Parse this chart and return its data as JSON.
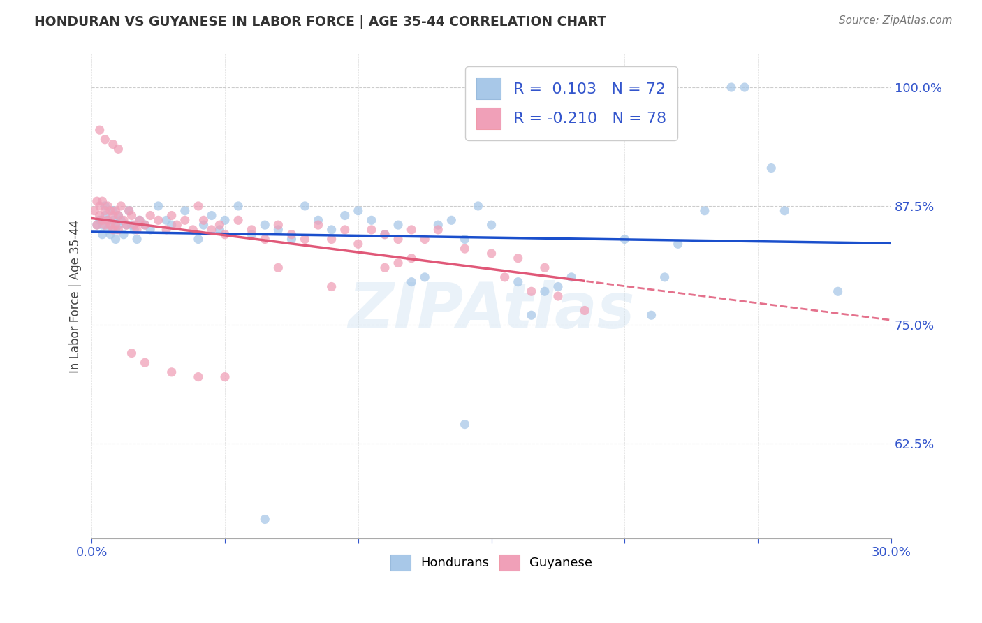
{
  "title": "HONDURAN VS GUYANESE IN LABOR FORCE | AGE 35-44 CORRELATION CHART",
  "source": "Source: ZipAtlas.com",
  "ylabel": "In Labor Force | Age 35-44",
  "yticks": [
    0.625,
    0.75,
    0.875,
    1.0
  ],
  "ytick_labels": [
    "62.5%",
    "75.0%",
    "87.5%",
    "100.0%"
  ],
  "xlim": [
    0.0,
    0.3
  ],
  "ylim": [
    0.525,
    1.035
  ],
  "watermark": "ZIPAtlas",
  "honduran_color": "#a8c8e8",
  "guyanese_color": "#f0a0b8",
  "trend_blue": "#1a4fcc",
  "trend_pink": "#e05878",
  "honduran_R": 0.103,
  "honduran_N": 72,
  "guyanese_R": -0.21,
  "guyanese_N": 78,
  "legend_blue_text": "R =  0.103   N = 72",
  "legend_pink_text": "R = -0.210   N = 78",
  "legend_blue_r": "0.103",
  "legend_pink_r": "-0.210",
  "legend_blue_n": "72",
  "legend_pink_n": "78",
  "legend_color": "#4477cc",
  "honduran_points": [
    [
      0.002,
      0.855
    ],
    [
      0.003,
      0.86
    ],
    [
      0.004,
      0.845
    ],
    [
      0.004,
      0.855
    ],
    [
      0.005,
      0.865
    ],
    [
      0.005,
      0.875
    ],
    [
      0.006,
      0.85
    ],
    [
      0.006,
      0.86
    ],
    [
      0.007,
      0.845
    ],
    [
      0.007,
      0.855
    ],
    [
      0.008,
      0.87
    ],
    [
      0.008,
      0.86
    ],
    [
      0.009,
      0.85
    ],
    [
      0.009,
      0.84
    ],
    [
      0.01,
      0.855
    ],
    [
      0.01,
      0.865
    ],
    [
      0.011,
      0.86
    ],
    [
      0.012,
      0.845
    ],
    [
      0.013,
      0.855
    ],
    [
      0.014,
      0.87
    ],
    [
      0.015,
      0.855
    ],
    [
      0.016,
      0.85
    ],
    [
      0.017,
      0.84
    ],
    [
      0.018,
      0.86
    ],
    [
      0.02,
      0.855
    ],
    [
      0.022,
      0.85
    ],
    [
      0.025,
      0.875
    ],
    [
      0.028,
      0.86
    ],
    [
      0.03,
      0.855
    ],
    [
      0.035,
      0.87
    ],
    [
      0.04,
      0.84
    ],
    [
      0.042,
      0.855
    ],
    [
      0.045,
      0.865
    ],
    [
      0.048,
      0.85
    ],
    [
      0.05,
      0.86
    ],
    [
      0.055,
      0.875
    ],
    [
      0.06,
      0.845
    ],
    [
      0.065,
      0.855
    ],
    [
      0.07,
      0.85
    ],
    [
      0.075,
      0.84
    ],
    [
      0.08,
      0.875
    ],
    [
      0.085,
      0.86
    ],
    [
      0.09,
      0.85
    ],
    [
      0.095,
      0.865
    ],
    [
      0.1,
      0.87
    ],
    [
      0.105,
      0.86
    ],
    [
      0.11,
      0.845
    ],
    [
      0.115,
      0.855
    ],
    [
      0.12,
      0.795
    ],
    [
      0.125,
      0.8
    ],
    [
      0.13,
      0.855
    ],
    [
      0.135,
      0.86
    ],
    [
      0.14,
      0.84
    ],
    [
      0.145,
      0.875
    ],
    [
      0.15,
      0.855
    ],
    [
      0.16,
      0.795
    ],
    [
      0.165,
      0.76
    ],
    [
      0.17,
      0.785
    ],
    [
      0.175,
      0.79
    ],
    [
      0.18,
      0.8
    ],
    [
      0.2,
      0.84
    ],
    [
      0.21,
      0.76
    ],
    [
      0.215,
      0.8
    ],
    [
      0.22,
      0.835
    ],
    [
      0.23,
      0.87
    ],
    [
      0.24,
      1.0
    ],
    [
      0.245,
      1.0
    ],
    [
      0.255,
      0.915
    ],
    [
      0.26,
      0.87
    ],
    [
      0.065,
      0.545
    ],
    [
      0.14,
      0.645
    ],
    [
      0.28,
      0.785
    ]
  ],
  "guyanese_points": [
    [
      0.001,
      0.87
    ],
    [
      0.002,
      0.88
    ],
    [
      0.002,
      0.855
    ],
    [
      0.003,
      0.875
    ],
    [
      0.003,
      0.865
    ],
    [
      0.004,
      0.88
    ],
    [
      0.004,
      0.86
    ],
    [
      0.005,
      0.87
    ],
    [
      0.005,
      0.855
    ],
    [
      0.006,
      0.875
    ],
    [
      0.006,
      0.86
    ],
    [
      0.007,
      0.87
    ],
    [
      0.007,
      0.855
    ],
    [
      0.008,
      0.865
    ],
    [
      0.008,
      0.85
    ],
    [
      0.009,
      0.87
    ],
    [
      0.009,
      0.855
    ],
    [
      0.01,
      0.865
    ],
    [
      0.01,
      0.85
    ],
    [
      0.011,
      0.875
    ],
    [
      0.012,
      0.86
    ],
    [
      0.013,
      0.855
    ],
    [
      0.014,
      0.87
    ],
    [
      0.015,
      0.865
    ],
    [
      0.016,
      0.855
    ],
    [
      0.017,
      0.85
    ],
    [
      0.018,
      0.86
    ],
    [
      0.02,
      0.855
    ],
    [
      0.022,
      0.865
    ],
    [
      0.025,
      0.86
    ],
    [
      0.028,
      0.85
    ],
    [
      0.03,
      0.865
    ],
    [
      0.032,
      0.855
    ],
    [
      0.035,
      0.86
    ],
    [
      0.038,
      0.85
    ],
    [
      0.04,
      0.875
    ],
    [
      0.042,
      0.86
    ],
    [
      0.045,
      0.85
    ],
    [
      0.048,
      0.855
    ],
    [
      0.05,
      0.845
    ],
    [
      0.055,
      0.86
    ],
    [
      0.06,
      0.85
    ],
    [
      0.065,
      0.84
    ],
    [
      0.07,
      0.855
    ],
    [
      0.075,
      0.845
    ],
    [
      0.08,
      0.84
    ],
    [
      0.085,
      0.855
    ],
    [
      0.09,
      0.84
    ],
    [
      0.095,
      0.85
    ],
    [
      0.1,
      0.835
    ],
    [
      0.105,
      0.85
    ],
    [
      0.11,
      0.845
    ],
    [
      0.115,
      0.84
    ],
    [
      0.12,
      0.85
    ],
    [
      0.125,
      0.84
    ],
    [
      0.13,
      0.85
    ],
    [
      0.14,
      0.83
    ],
    [
      0.15,
      0.825
    ],
    [
      0.16,
      0.82
    ],
    [
      0.17,
      0.81
    ],
    [
      0.003,
      0.955
    ],
    [
      0.005,
      0.945
    ],
    [
      0.008,
      0.94
    ],
    [
      0.01,
      0.935
    ],
    [
      0.015,
      0.72
    ],
    [
      0.02,
      0.71
    ],
    [
      0.03,
      0.7
    ],
    [
      0.04,
      0.695
    ],
    [
      0.05,
      0.695
    ],
    [
      0.07,
      0.81
    ],
    [
      0.09,
      0.79
    ],
    [
      0.11,
      0.81
    ],
    [
      0.115,
      0.815
    ],
    [
      0.12,
      0.82
    ],
    [
      0.155,
      0.8
    ],
    [
      0.165,
      0.785
    ],
    [
      0.175,
      0.78
    ],
    [
      0.185,
      0.765
    ]
  ]
}
